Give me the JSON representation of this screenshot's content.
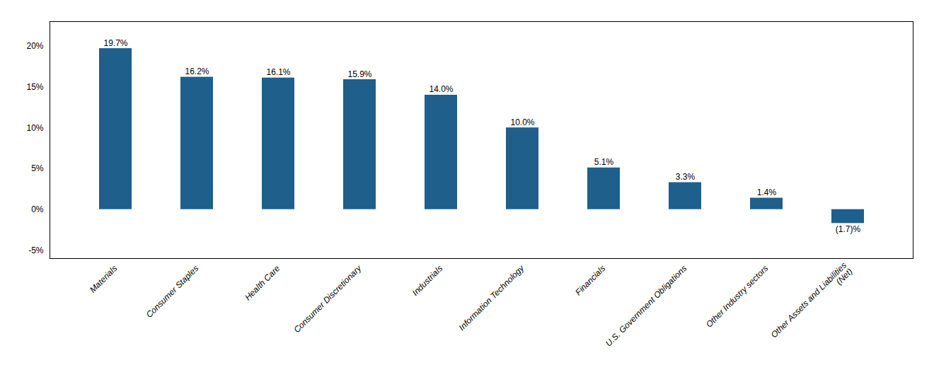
{
  "chart_data": {
    "type": "bar",
    "categories": [
      "Materials",
      "Consumer Staples",
      "Health Care",
      "Consumer Discretionary",
      "Industrials",
      "Information Technology",
      "Financials",
      "U.S. Government Obligations",
      "Other Industry sectors",
      "Other Assets and Liabilities\n(Net)"
    ],
    "values": [
      19.7,
      16.2,
      16.1,
      15.9,
      14.0,
      10.0,
      5.1,
      3.3,
      1.4,
      -1.7
    ],
    "value_labels": [
      "19.7%",
      "16.2%",
      "16.1%",
      "15.9%",
      "14.0%",
      "10.0%",
      "5.1%",
      "3.3%",
      "1.4%",
      "(1.7)%"
    ],
    "data_labels": true,
    "color": "#1F5F8B",
    "ylim": [
      -6,
      23
    ],
    "yticks": [
      {
        "value": -5,
        "label": "-5%"
      },
      {
        "value": 0,
        "label": "0%"
      },
      {
        "value": 5,
        "label": "5%"
      },
      {
        "value": 10,
        "label": "10%"
      },
      {
        "value": 15,
        "label": "15%"
      },
      {
        "value": 20,
        "label": "20%"
      }
    ],
    "grid": false
  }
}
